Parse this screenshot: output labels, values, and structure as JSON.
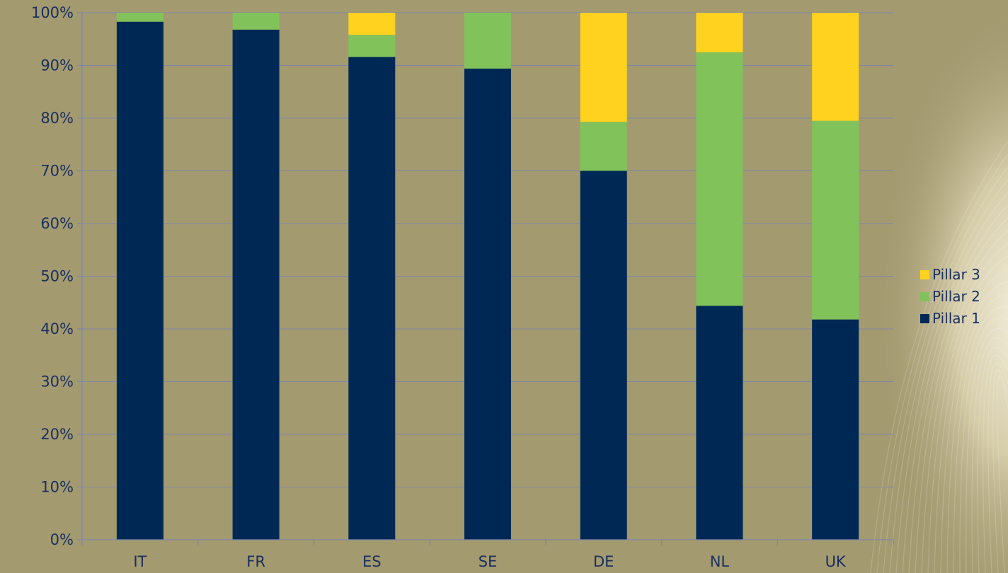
{
  "chart_data": {
    "type": "bar",
    "stacked": true,
    "percent": true,
    "title": "",
    "xlabel": "",
    "ylabel": "",
    "categories": [
      "IT",
      "FR",
      "ES",
      "SE",
      "DE",
      "NL",
      "UK"
    ],
    "series": [
      {
        "name": "Pillar 1",
        "color": "#002855",
        "values": [
          98.3,
          96.8,
          91.6,
          89.4,
          70.0,
          44.4,
          41.8
        ]
      },
      {
        "name": "Pillar 2",
        "color": "#82c25b",
        "values": [
          1.7,
          3.2,
          4.2,
          10.6,
          9.3,
          48.1,
          37.7
        ]
      },
      {
        "name": "Pillar 3",
        "color": "#ffd21f",
        "values": [
          0.0,
          0.0,
          4.2,
          0.0,
          20.7,
          7.5,
          20.5
        ]
      }
    ],
    "ylim": [
      0,
      100
    ],
    "yticks": [
      0,
      10,
      20,
      30,
      40,
      50,
      60,
      70,
      80,
      90,
      100
    ],
    "ytick_labels": [
      "0%",
      "10%",
      "20%",
      "30%",
      "40%",
      "50%",
      "60%",
      "70%",
      "80%",
      "90%",
      "100%"
    ],
    "grid": true,
    "legend": {
      "position": "right",
      "order": [
        "Pillar 3",
        "Pillar 2",
        "Pillar 1"
      ]
    }
  }
}
